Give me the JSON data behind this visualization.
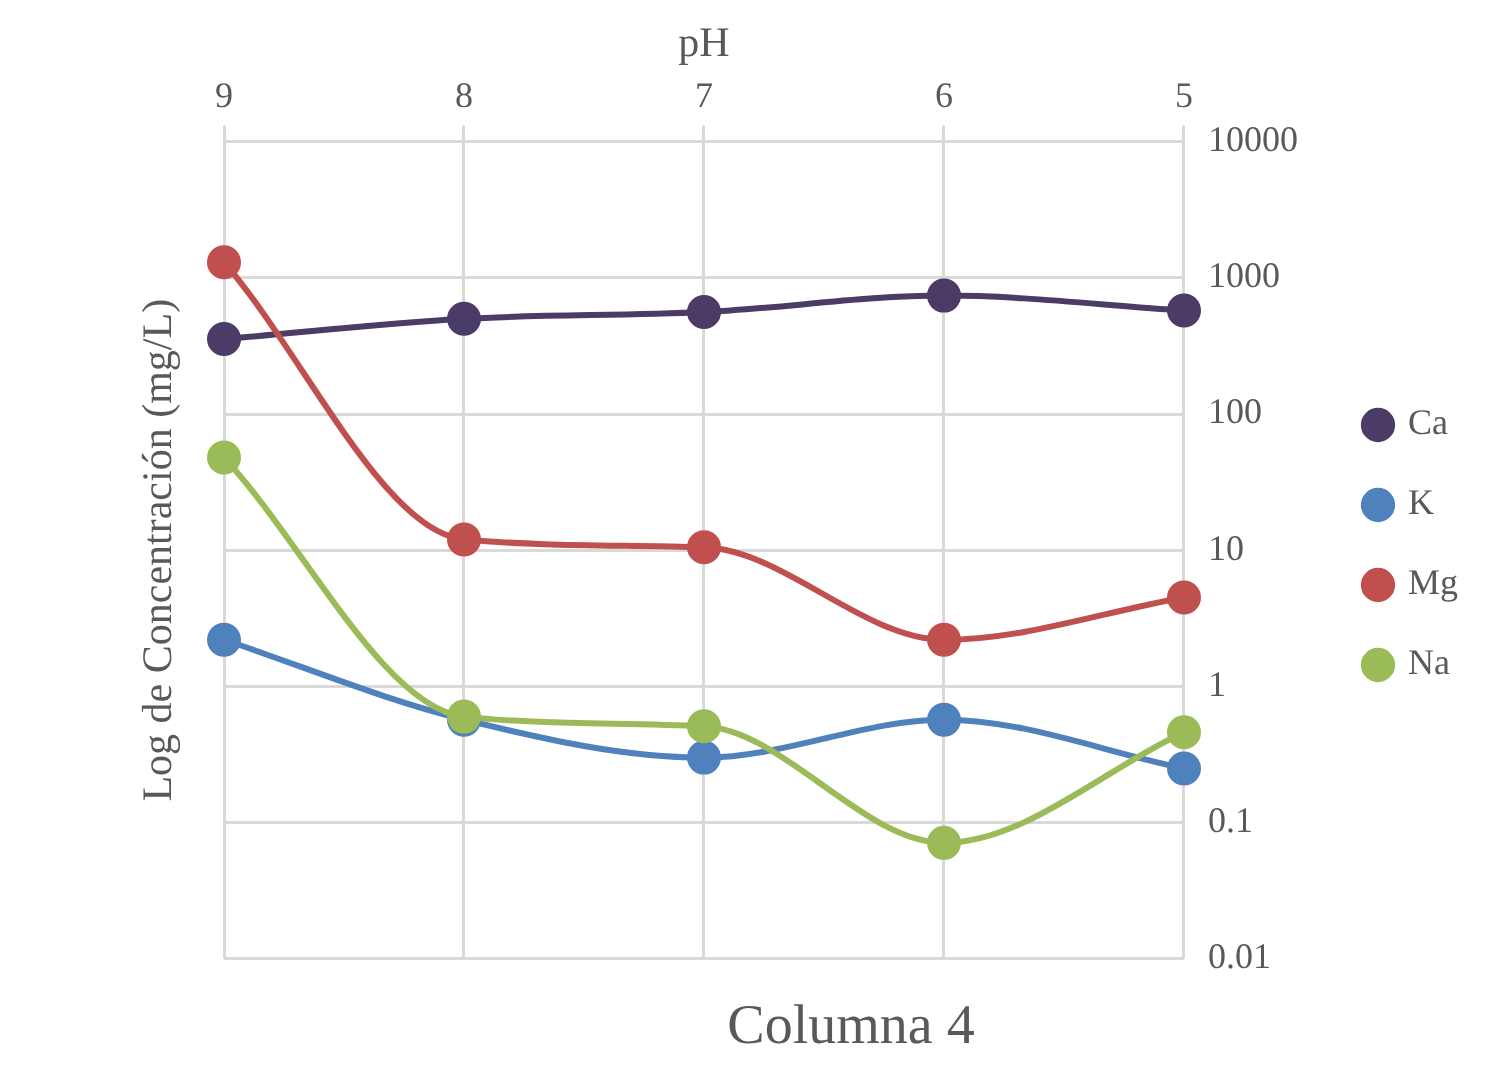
{
  "chart_data": {
    "type": "line",
    "title": "Columna 4",
    "xlabel": "pH",
    "ylabel": "Log de Concentración (mg/L)",
    "categories": [
      "9",
      "8",
      "7",
      "6",
      "5"
    ],
    "series": [
      {
        "name": "Ca",
        "color": "#4a3b67",
        "values": [
          355,
          500,
          560,
          740,
          575
        ]
      },
      {
        "name": "K",
        "color": "#4f81bd",
        "values": [
          2.2,
          0.57,
          0.3,
          0.57,
          0.25
        ]
      },
      {
        "name": "Mg",
        "color": "#c0504d",
        "values": [
          1300,
          12,
          10.5,
          2.2,
          4.5
        ]
      },
      {
        "name": "Na",
        "color": "#9bbb59",
        "values": [
          48,
          0.6,
          0.51,
          0.071,
          0.46
        ]
      }
    ],
    "log": true,
    "ylim": [
      0.01,
      10000
    ],
    "yticks": [
      0.01,
      0.1,
      1,
      10,
      100,
      1000,
      10000
    ],
    "grid": true,
    "legend": "right",
    "marker": "circle",
    "line_style": "solid"
  }
}
